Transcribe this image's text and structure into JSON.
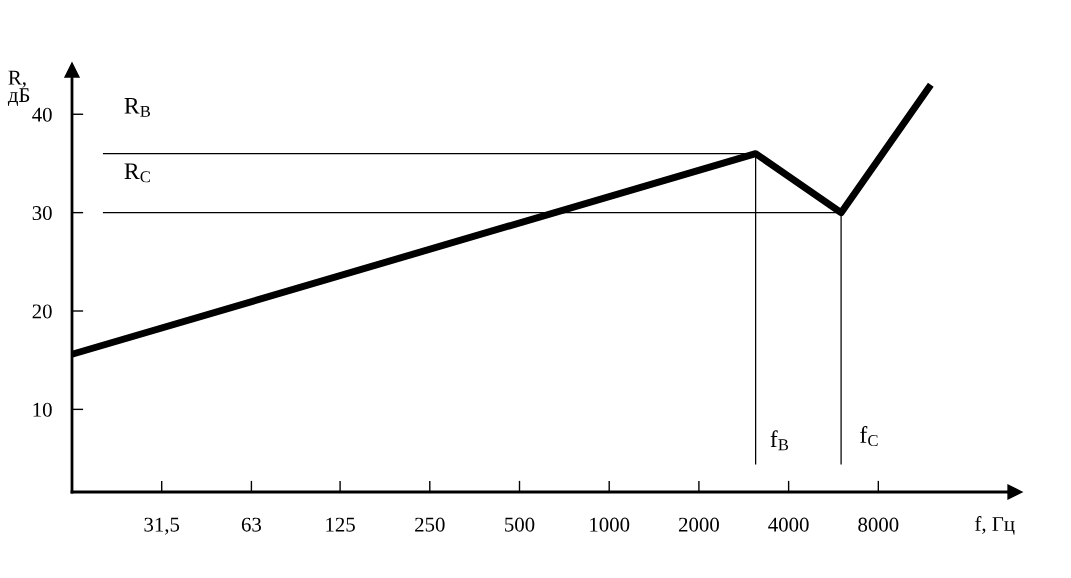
{
  "chart_data": {
    "type": "line",
    "xlabel": "f, Гц",
    "ylabel": "R,\nдБ",
    "log": "x",
    "xlim": [
      15.75,
      23000
    ],
    "ylim": [
      1.6,
      44.5
    ],
    "xticks": [
      {
        "value": 31.5,
        "label": "31,5"
      },
      63,
      125,
      250,
      500,
      1000,
      2000,
      4000,
      8000
    ],
    "yticks": [
      10,
      20,
      30,
      40
    ],
    "grid": false,
    "marker": "none",
    "line_style": "solid",
    "series": [
      {
        "color": "#000000",
        "x": [
          15.75,
          3100,
          6000,
          12000
        ],
        "values": [
          15.6,
          36,
          30,
          43
        ]
      },
      {
        "color": "#000000",
        "x": [
          20,
          3100
        ],
        "values": [
          36,
          36
        ]
      },
      {
        "color": "#000000",
        "x": [
          20,
          6000
        ],
        "values": [
          30,
          30
        ]
      },
      {
        "color": "#000000",
        "x": [
          3100,
          3100
        ],
        "values": [
          36,
          4.4
        ]
      },
      {
        "color": "#000000",
        "x": [
          6000,
          6000
        ],
        "values": [
          30,
          4.4
        ]
      }
    ],
    "annotations": [
      "R$_{B}$",
      "R$_{C}$",
      "f$_{B}$",
      "f$_{C}$"
    ]
  }
}
